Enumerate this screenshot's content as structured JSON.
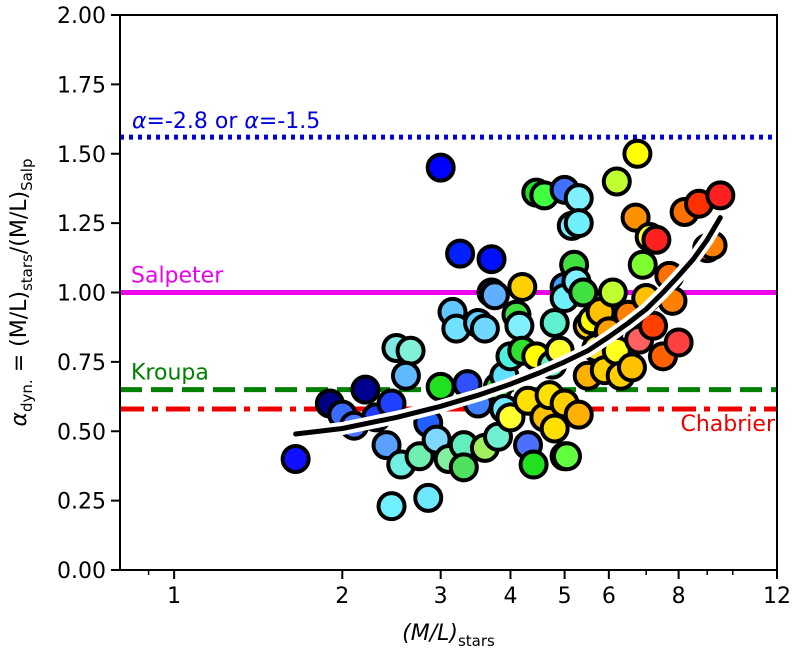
{
  "chart_data": {
    "type": "scatter",
    "xlabel": "(M/L)",
    "xlabel_sub": "stars",
    "ylabel": {
      "pre": "α",
      "pre_sub": "dyn.",
      "mid": " = (M/L)",
      "mid_sub": "stars",
      "post": "/(M/L)",
      "post_sub": "Salp"
    },
    "x_scale": "log",
    "xlim": [
      0.8,
      12
    ],
    "ylim": [
      0.0,
      2.0
    ],
    "x_major_ticks": [
      1,
      2,
      3,
      4,
      5,
      6,
      8,
      12
    ],
    "x_tick_labels": [
      "1",
      "2",
      "3",
      "4",
      "5",
      "6",
      "8",
      "12"
    ],
    "x_minor_ticks": [
      0.9,
      7,
      9,
      10
    ],
    "y_ticks": [
      0.0,
      0.25,
      0.5,
      0.75,
      1.0,
      1.25,
      1.5,
      1.75,
      2.0
    ],
    "y_tick_labels": [
      "0.00",
      "0.25",
      "0.50",
      "0.75",
      "1.00",
      "1.25",
      "1.50",
      "1.75",
      "2.00"
    ],
    "grid": false,
    "reference_lines": [
      {
        "label": "α=-2.8 or α=-1.5",
        "y": 1.56,
        "color": "#0000dd",
        "style": "dotted"
      },
      {
        "label": "Salpeter",
        "y": 1.0,
        "color": "#ee00ee",
        "style": "solid"
      },
      {
        "label": "Kroupa",
        "y": 0.65,
        "color": "#008000",
        "style": "dashed"
      },
      {
        "label": "Chabrier",
        "y": 0.58,
        "color": "#ee0000",
        "style": "dashdot"
      }
    ],
    "fit_curve": {
      "color": "#000000",
      "x": [
        1.65,
        2.0,
        2.5,
        3.0,
        3.5,
        4.0,
        4.5,
        5.0,
        5.5,
        6.0,
        6.5,
        7.0,
        7.5,
        8.0,
        8.5,
        9.0,
        9.5
      ],
      "y": [
        0.49,
        0.51,
        0.55,
        0.59,
        0.63,
        0.67,
        0.71,
        0.75,
        0.79,
        0.84,
        0.89,
        0.94,
        1.0,
        1.06,
        1.12,
        1.19,
        1.27
      ]
    },
    "points": [
      {
        "x": 1.65,
        "y": 0.4,
        "c": "#1010ff"
      },
      {
        "x": 1.9,
        "y": 0.6,
        "c": "#000080"
      },
      {
        "x": 2.0,
        "y": 0.56,
        "c": "#3a6cff"
      },
      {
        "x": 2.2,
        "y": 0.65,
        "c": "#000090"
      },
      {
        "x": 2.3,
        "y": 0.55,
        "c": "#1c3cff"
      },
      {
        "x": 2.1,
        "y": 0.52,
        "c": "#4a78ff"
      },
      {
        "x": 2.4,
        "y": 0.45,
        "c": "#5aa0ff"
      },
      {
        "x": 2.5,
        "y": 0.8,
        "c": "#80e8e0"
      },
      {
        "x": 2.65,
        "y": 0.79,
        "c": "#80f0d8"
      },
      {
        "x": 2.6,
        "y": 0.7,
        "c": "#60b8ff"
      },
      {
        "x": 2.45,
        "y": 0.6,
        "c": "#2040ff"
      },
      {
        "x": 2.55,
        "y": 0.38,
        "c": "#70f0e0"
      },
      {
        "x": 2.45,
        "y": 0.23,
        "c": "#70f0ff"
      },
      {
        "x": 2.85,
        "y": 0.26,
        "c": "#6ee8ff"
      },
      {
        "x": 2.75,
        "y": 0.41,
        "c": "#70f0b0"
      },
      {
        "x": 2.85,
        "y": 0.53,
        "c": "#2060ff"
      },
      {
        "x": 2.95,
        "y": 0.47,
        "c": "#80d8ff"
      },
      {
        "x": 3.0,
        "y": 1.45,
        "c": "#0000ff"
      },
      {
        "x": 3.0,
        "y": 0.66,
        "c": "#20e020"
      },
      {
        "x": 3.1,
        "y": 0.4,
        "c": "#80f0a0"
      },
      {
        "x": 3.15,
        "y": 0.93,
        "c": "#60c8ff"
      },
      {
        "x": 3.2,
        "y": 0.87,
        "c": "#70e0ff"
      },
      {
        "x": 3.25,
        "y": 1.14,
        "c": "#0020ff"
      },
      {
        "x": 3.35,
        "y": 0.67,
        "c": "#3050ff"
      },
      {
        "x": 3.3,
        "y": 0.45,
        "c": "#60f0c0"
      },
      {
        "x": 3.3,
        "y": 0.37,
        "c": "#50e060"
      },
      {
        "x": 3.5,
        "y": 0.6,
        "c": "#4080ff"
      },
      {
        "x": 3.5,
        "y": 0.89,
        "c": "#60d0ff"
      },
      {
        "x": 3.6,
        "y": 0.87,
        "c": "#70d8ff"
      },
      {
        "x": 3.6,
        "y": 0.44,
        "c": "#a0f060"
      },
      {
        "x": 3.7,
        "y": 1.12,
        "c": "#0010ff"
      },
      {
        "x": 3.7,
        "y": 1.0,
        "c": "#4a80ff"
      },
      {
        "x": 3.75,
        "y": 0.99,
        "c": "#60b0ff"
      },
      {
        "x": 3.8,
        "y": 0.66,
        "c": "#20e020"
      },
      {
        "x": 3.8,
        "y": 0.48,
        "c": "#70f0d0"
      },
      {
        "x": 3.9,
        "y": 0.7,
        "c": "#60e0ff"
      },
      {
        "x": 3.9,
        "y": 0.58,
        "c": "#70e8ff"
      },
      {
        "x": 4.0,
        "y": 0.77,
        "c": "#50f0e0"
      },
      {
        "x": 4.0,
        "y": 0.55,
        "c": "#ffff30"
      },
      {
        "x": 4.1,
        "y": 0.92,
        "c": "#40e040"
      },
      {
        "x": 4.15,
        "y": 0.88,
        "c": "#80f0ff"
      },
      {
        "x": 4.2,
        "y": 1.02,
        "c": "#ffd000"
      },
      {
        "x": 4.2,
        "y": 0.79,
        "c": "#30e030"
      },
      {
        "x": 4.3,
        "y": 0.61,
        "c": "#ffe000"
      },
      {
        "x": 4.3,
        "y": 0.45,
        "c": "#4a70ff"
      },
      {
        "x": 4.4,
        "y": 0.38,
        "c": "#20e020"
      },
      {
        "x": 4.45,
        "y": 1.36,
        "c": "#20e020"
      },
      {
        "x": 4.45,
        "y": 0.77,
        "c": "#ffff00"
      },
      {
        "x": 4.6,
        "y": 1.35,
        "c": "#40ff40"
      },
      {
        "x": 4.6,
        "y": 0.55,
        "c": "#ffc000"
      },
      {
        "x": 4.7,
        "y": 0.63,
        "c": "#ffe000"
      },
      {
        "x": 4.75,
        "y": 0.74,
        "c": "#60f0c0"
      },
      {
        "x": 4.8,
        "y": 0.89,
        "c": "#60f0d0"
      },
      {
        "x": 4.8,
        "y": 0.51,
        "c": "#ffe000"
      },
      {
        "x": 4.9,
        "y": 0.79,
        "c": "#ffff30"
      },
      {
        "x": 5.0,
        "y": 1.37,
        "c": "#4070ff"
      },
      {
        "x": 5.0,
        "y": 1.02,
        "c": "#40a0ff"
      },
      {
        "x": 5.0,
        "y": 0.98,
        "c": "#70f0ff"
      },
      {
        "x": 5.0,
        "y": 0.6,
        "c": "#ffd000"
      },
      {
        "x": 5.0,
        "y": 0.41,
        "c": "#ffb000"
      },
      {
        "x": 5.05,
        "y": 0.41,
        "c": "#60ff40"
      },
      {
        "x": 5.15,
        "y": 1.24,
        "c": "#80e8ff"
      },
      {
        "x": 5.2,
        "y": 1.1,
        "c": "#40e040"
      },
      {
        "x": 5.25,
        "y": 1.04,
        "c": "#80f0ff"
      },
      {
        "x": 5.3,
        "y": 1.34,
        "c": "#80f0ff"
      },
      {
        "x": 5.3,
        "y": 1.25,
        "c": "#70f0ff"
      },
      {
        "x": 5.3,
        "y": 0.56,
        "c": "#ffb000"
      },
      {
        "x": 5.4,
        "y": 1.0,
        "c": "#40e040"
      },
      {
        "x": 5.5,
        "y": 0.88,
        "c": "#ffd000"
      },
      {
        "x": 5.5,
        "y": 0.7,
        "c": "#ffb000"
      },
      {
        "x": 5.6,
        "y": 0.9,
        "c": "#ffff00"
      },
      {
        "x": 5.7,
        "y": 0.8,
        "c": "#ffe030"
      },
      {
        "x": 5.8,
        "y": 0.93,
        "c": "#ffc000"
      },
      {
        "x": 5.9,
        "y": 0.72,
        "c": "#ffd000"
      },
      {
        "x": 6.0,
        "y": 0.86,
        "c": "#ffa000"
      },
      {
        "x": 6.1,
        "y": 1.0,
        "c": "#c0ff30"
      },
      {
        "x": 6.2,
        "y": 0.79,
        "c": "#ffff20"
      },
      {
        "x": 6.2,
        "y": 1.4,
        "c": "#c0ff30"
      },
      {
        "x": 6.3,
        "y": 0.7,
        "c": "#ffd000"
      },
      {
        "x": 6.5,
        "y": 0.92,
        "c": "#ff8000"
      },
      {
        "x": 6.6,
        "y": 0.73,
        "c": "#ffc000"
      },
      {
        "x": 6.7,
        "y": 1.27,
        "c": "#ff9000"
      },
      {
        "x": 6.75,
        "y": 1.5,
        "c": "#ffff00"
      },
      {
        "x": 6.8,
        "y": 0.83,
        "c": "#ff6060"
      },
      {
        "x": 6.9,
        "y": 1.1,
        "c": "#80ff30"
      },
      {
        "x": 7.0,
        "y": 0.98,
        "c": "#ffc000"
      },
      {
        "x": 7.1,
        "y": 1.2,
        "c": "#ffff30"
      },
      {
        "x": 7.2,
        "y": 0.88,
        "c": "#ff4000"
      },
      {
        "x": 7.3,
        "y": 1.19,
        "c": "#ff2020"
      },
      {
        "x": 7.5,
        "y": 0.77,
        "c": "#ff6000"
      },
      {
        "x": 7.7,
        "y": 1.06,
        "c": "#ff7000"
      },
      {
        "x": 7.8,
        "y": 0.97,
        "c": "#ff8000"
      },
      {
        "x": 8.0,
        "y": 0.82,
        "c": "#ff4040"
      },
      {
        "x": 8.2,
        "y": 1.29,
        "c": "#ff7000"
      },
      {
        "x": 8.7,
        "y": 1.32,
        "c": "#ff3000"
      },
      {
        "x": 9.0,
        "y": 1.16,
        "c": "#ff5000"
      },
      {
        "x": 9.2,
        "y": 1.17,
        "c": "#ff8000"
      },
      {
        "x": 9.5,
        "y": 1.35,
        "c": "#ff2020"
      }
    ]
  }
}
